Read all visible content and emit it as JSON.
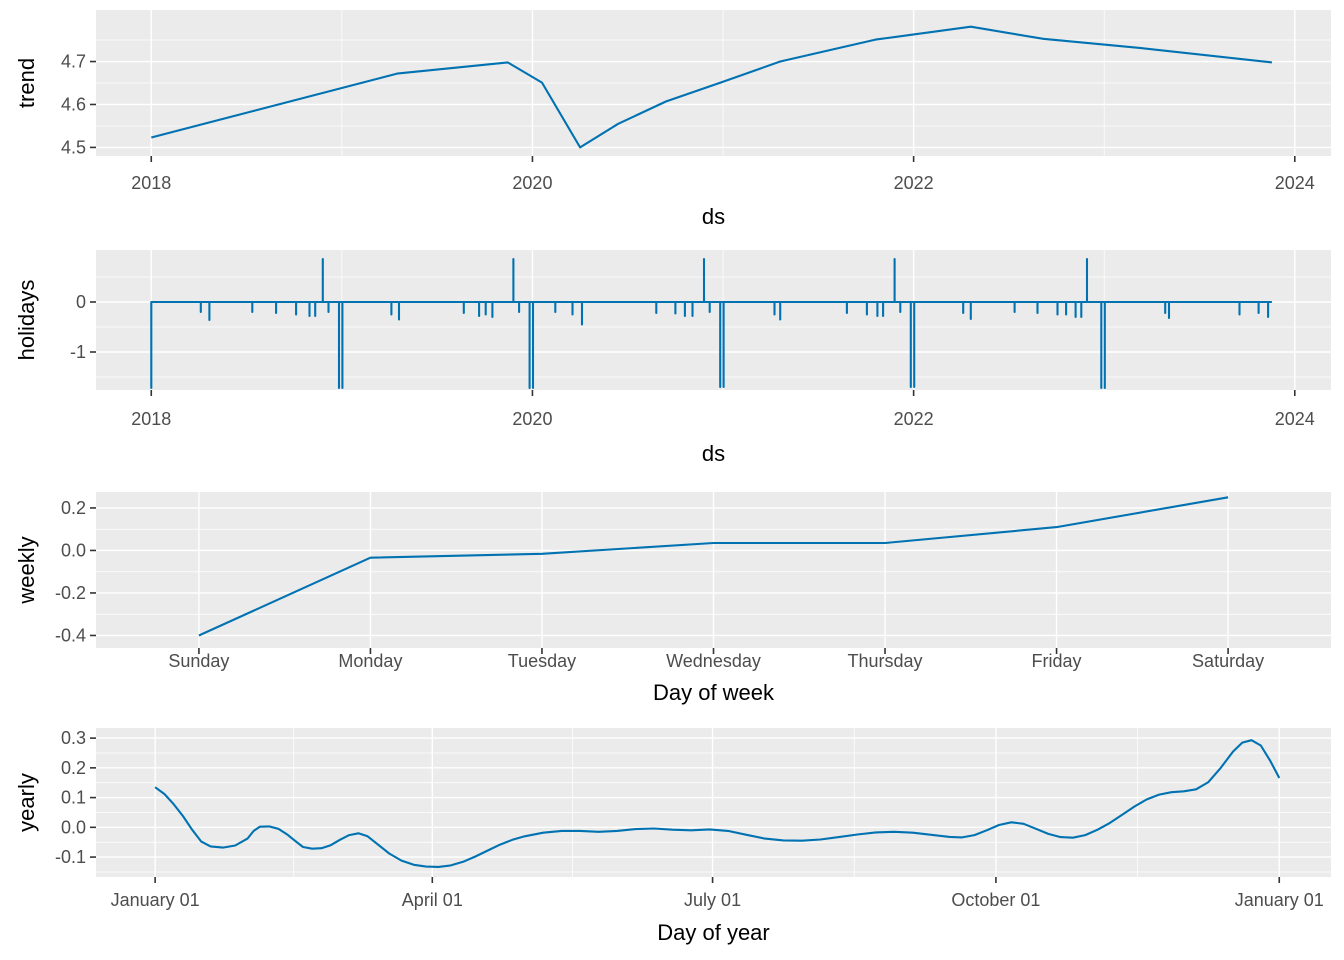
{
  "figure": {
    "kind": "prophet-forecast-components",
    "background": "#ffffff"
  },
  "style": {
    "line_color": "#0072B2",
    "panel_bg": "#EBEBEB",
    "grid_color": "#FFFFFF",
    "tick_mark_color": "#333333",
    "tick_label_color": "#4D4D4D",
    "axis_title_color": "#000000"
  },
  "chart_data": [
    {
      "type": "line",
      "name": "trend",
      "ylabel": "trend",
      "xlabel": "ds",
      "xlim": [
        2017.71,
        2024.19
      ],
      "ylim": [
        4.48,
        4.82
      ],
      "xticks": [
        {
          "v": 2018,
          "label": "2018"
        },
        {
          "v": 2020,
          "label": "2020"
        },
        {
          "v": 2022,
          "label": "2022"
        },
        {
          "v": 2024,
          "label": "2024"
        }
      ],
      "xminor": [
        2019,
        2021,
        2023
      ],
      "yticks": [
        {
          "v": 4.5,
          "label": "4.5"
        },
        {
          "v": 4.6,
          "label": "4.6"
        },
        {
          "v": 4.7,
          "label": "4.7"
        }
      ],
      "yminor": [
        4.55,
        4.65,
        4.75
      ],
      "points": [
        [
          2018.0,
          4.523
        ],
        [
          2019.29,
          4.672
        ],
        [
          2019.87,
          4.698
        ],
        [
          2020.05,
          4.651
        ],
        [
          2020.25,
          4.5
        ],
        [
          2020.45,
          4.555
        ],
        [
          2020.7,
          4.607
        ],
        [
          2021.0,
          4.653
        ],
        [
          2021.3,
          4.7
        ],
        [
          2021.8,
          4.751
        ],
        [
          2022.3,
          4.781
        ],
        [
          2022.68,
          4.753
        ],
        [
          2023.2,
          4.731
        ],
        [
          2023.88,
          4.698
        ]
      ]
    },
    {
      "type": "impulse",
      "name": "holidays",
      "ylabel": "holidays",
      "xlabel": "ds",
      "xlim": [
        2017.71,
        2024.19
      ],
      "ylim": [
        -1.76,
        1.04
      ],
      "baseline": 0,
      "x_start": 2018.0,
      "x_end": 2023.88,
      "xticks": [
        {
          "v": 2018,
          "label": "2018"
        },
        {
          "v": 2020,
          "label": "2020"
        },
        {
          "v": 2022,
          "label": "2022"
        },
        {
          "v": 2024,
          "label": "2024"
        }
      ],
      "xminor": [
        2019,
        2021,
        2023
      ],
      "yticks": [
        {
          "v": 0,
          "label": "0"
        },
        {
          "v": -1,
          "label": "-1"
        }
      ],
      "yminor": [
        0.5,
        -0.5,
        -1.5
      ],
      "spikes": [
        [
          2018.0,
          -1.72
        ],
        [
          2018.26,
          -0.2
        ],
        [
          2018.305,
          -0.36
        ],
        [
          2018.53,
          -0.2
        ],
        [
          2018.655,
          -0.22
        ],
        [
          2018.76,
          -0.25
        ],
        [
          2018.83,
          -0.28
        ],
        [
          2018.86,
          -0.28
        ],
        [
          2018.9,
          0.86
        ],
        [
          2018.93,
          -0.2
        ],
        [
          2018.985,
          -1.72
        ],
        [
          2019.003,
          -1.72
        ],
        [
          2019.26,
          -0.25
        ],
        [
          2019.3,
          -0.35
        ],
        [
          2019.64,
          -0.22
        ],
        [
          2019.72,
          -0.28
        ],
        [
          2019.755,
          -0.25
        ],
        [
          2019.79,
          -0.3
        ],
        [
          2019.9,
          0.86
        ],
        [
          2019.93,
          -0.2
        ],
        [
          2019.985,
          -1.72
        ],
        [
          2020.003,
          -1.72
        ],
        [
          2020.12,
          -0.2
        ],
        [
          2020.21,
          -0.25
        ],
        [
          2020.26,
          -0.45
        ],
        [
          2020.65,
          -0.22
        ],
        [
          2020.75,
          -0.23
        ],
        [
          2020.8,
          -0.28
        ],
        [
          2020.84,
          -0.28
        ],
        [
          2020.9,
          0.86
        ],
        [
          2020.93,
          -0.2
        ],
        [
          2020.985,
          -1.7
        ],
        [
          2021.003,
          -1.7
        ],
        [
          2021.27,
          -0.25
        ],
        [
          2021.3,
          -0.35
        ],
        [
          2021.65,
          -0.22
        ],
        [
          2021.755,
          -0.25
        ],
        [
          2021.81,
          -0.28
        ],
        [
          2021.84,
          -0.28
        ],
        [
          2021.9,
          0.86
        ],
        [
          2021.93,
          -0.2
        ],
        [
          2021.985,
          -1.7
        ],
        [
          2022.003,
          -1.7
        ],
        [
          2022.26,
          -0.22
        ],
        [
          2022.3,
          -0.34
        ],
        [
          2022.53,
          -0.2
        ],
        [
          2022.65,
          -0.22
        ],
        [
          2022.755,
          -0.25
        ],
        [
          2022.8,
          -0.25
        ],
        [
          2022.85,
          -0.3
        ],
        [
          2022.88,
          -0.3
        ],
        [
          2022.91,
          0.86
        ],
        [
          2022.985,
          -1.72
        ],
        [
          2023.003,
          -1.72
        ],
        [
          2023.32,
          -0.22
        ],
        [
          2023.34,
          -0.32
        ],
        [
          2023.71,
          -0.25
        ],
        [
          2023.81,
          -0.22
        ],
        [
          2023.86,
          -0.3
        ]
      ]
    },
    {
      "type": "line",
      "name": "weekly",
      "ylabel": "weekly",
      "xlabel": "Day of week",
      "xlim": [
        0.4,
        7.6
      ],
      "ylim": [
        -0.459,
        0.275
      ],
      "xticks": [
        {
          "v": 1,
          "label": "Sunday"
        },
        {
          "v": 2,
          "label": "Monday"
        },
        {
          "v": 3,
          "label": "Tuesday"
        },
        {
          "v": 4,
          "label": "Wednesday"
        },
        {
          "v": 5,
          "label": "Thursday"
        },
        {
          "v": 6,
          "label": "Friday"
        },
        {
          "v": 7,
          "label": "Saturday"
        }
      ],
      "xminor": [],
      "yticks": [
        {
          "v": 0.2,
          "label": "0.2"
        },
        {
          "v": 0.0,
          "label": "0.0"
        },
        {
          "v": -0.2,
          "label": "-0.2"
        },
        {
          "v": -0.4,
          "label": "-0.4"
        }
      ],
      "yminor": [
        0.1,
        -0.1,
        -0.3
      ],
      "points": [
        [
          1,
          -0.4
        ],
        [
          2,
          -0.034
        ],
        [
          3,
          -0.016
        ],
        [
          4,
          0.035
        ],
        [
          5,
          0.035
        ],
        [
          6,
          0.11
        ],
        [
          7,
          0.25
        ]
      ]
    },
    {
      "type": "line",
      "name": "yearly",
      "ylabel": "yearly",
      "xlabel": "Day of year",
      "xlim": [
        -19.2,
        381.8
      ],
      "ylim": [
        -0.167,
        0.334
      ],
      "xticks": [
        {
          "v": 0,
          "label": "January 01"
        },
        {
          "v": 90,
          "label": "April 01"
        },
        {
          "v": 181,
          "label": "July 01"
        },
        {
          "v": 273,
          "label": "October 01"
        },
        {
          "v": 365,
          "label": "January 01"
        }
      ],
      "xminor": [
        45,
        135.5,
        227,
        319
      ],
      "yticks": [
        {
          "v": 0.3,
          "label": "0.3"
        },
        {
          "v": 0.2,
          "label": "0.2"
        },
        {
          "v": 0.1,
          "label": "0.1"
        },
        {
          "v": 0.0,
          "label": "0.0"
        },
        {
          "v": -0.1,
          "label": "-0.1"
        }
      ],
      "yminor": [
        0.25,
        0.15,
        0.05,
        -0.05,
        -0.15
      ],
      "points": [
        [
          0,
          0.135
        ],
        [
          3,
          0.112
        ],
        [
          6,
          0.078
        ],
        [
          9,
          0.038
        ],
        [
          12,
          -0.008
        ],
        [
          15,
          -0.048
        ],
        [
          18,
          -0.064
        ],
        [
          22,
          -0.068
        ],
        [
          26,
          -0.061
        ],
        [
          30,
          -0.038
        ],
        [
          32,
          -0.012
        ],
        [
          34,
          0.002
        ],
        [
          37,
          0.003
        ],
        [
          40,
          -0.005
        ],
        [
          43,
          -0.025
        ],
        [
          46,
          -0.05
        ],
        [
          48,
          -0.066
        ],
        [
          51,
          -0.072
        ],
        [
          54,
          -0.07
        ],
        [
          57,
          -0.06
        ],
        [
          60,
          -0.042
        ],
        [
          63,
          -0.026
        ],
        [
          66,
          -0.02
        ],
        [
          69,
          -0.03
        ],
        [
          72,
          -0.055
        ],
        [
          76,
          -0.088
        ],
        [
          80,
          -0.112
        ],
        [
          84,
          -0.126
        ],
        [
          88,
          -0.132
        ],
        [
          92,
          -0.133
        ],
        [
          96,
          -0.128
        ],
        [
          100,
          -0.116
        ],
        [
          104,
          -0.098
        ],
        [
          108,
          -0.078
        ],
        [
          112,
          -0.058
        ],
        [
          116,
          -0.042
        ],
        [
          120,
          -0.03
        ],
        [
          126,
          -0.018
        ],
        [
          132,
          -0.012
        ],
        [
          138,
          -0.012
        ],
        [
          144,
          -0.015
        ],
        [
          150,
          -0.012
        ],
        [
          156,
          -0.006
        ],
        [
          162,
          -0.004
        ],
        [
          168,
          -0.008
        ],
        [
          174,
          -0.01
        ],
        [
          180,
          -0.007
        ],
        [
          186,
          -0.012
        ],
        [
          192,
          -0.025
        ],
        [
          198,
          -0.038
        ],
        [
          204,
          -0.044
        ],
        [
          210,
          -0.045
        ],
        [
          216,
          -0.041
        ],
        [
          222,
          -0.033
        ],
        [
          228,
          -0.024
        ],
        [
          234,
          -0.017
        ],
        [
          240,
          -0.015
        ],
        [
          246,
          -0.018
        ],
        [
          252,
          -0.025
        ],
        [
          258,
          -0.032
        ],
        [
          262,
          -0.034
        ],
        [
          266,
          -0.026
        ],
        [
          270,
          -0.01
        ],
        [
          274,
          0.008
        ],
        [
          278,
          0.017
        ],
        [
          282,
          0.012
        ],
        [
          286,
          -0.005
        ],
        [
          290,
          -0.022
        ],
        [
          294,
          -0.033
        ],
        [
          298,
          -0.035
        ],
        [
          302,
          -0.026
        ],
        [
          306,
          -0.008
        ],
        [
          310,
          0.015
        ],
        [
          314,
          0.042
        ],
        [
          318,
          0.07
        ],
        [
          322,
          0.094
        ],
        [
          326,
          0.11
        ],
        [
          330,
          0.118
        ],
        [
          334,
          0.121
        ],
        [
          338,
          0.128
        ],
        [
          342,
          0.152
        ],
        [
          346,
          0.2
        ],
        [
          350,
          0.255
        ],
        [
          353,
          0.285
        ],
        [
          356,
          0.293
        ],
        [
          359,
          0.275
        ],
        [
          362,
          0.225
        ],
        [
          365,
          0.166
        ]
      ]
    }
  ]
}
